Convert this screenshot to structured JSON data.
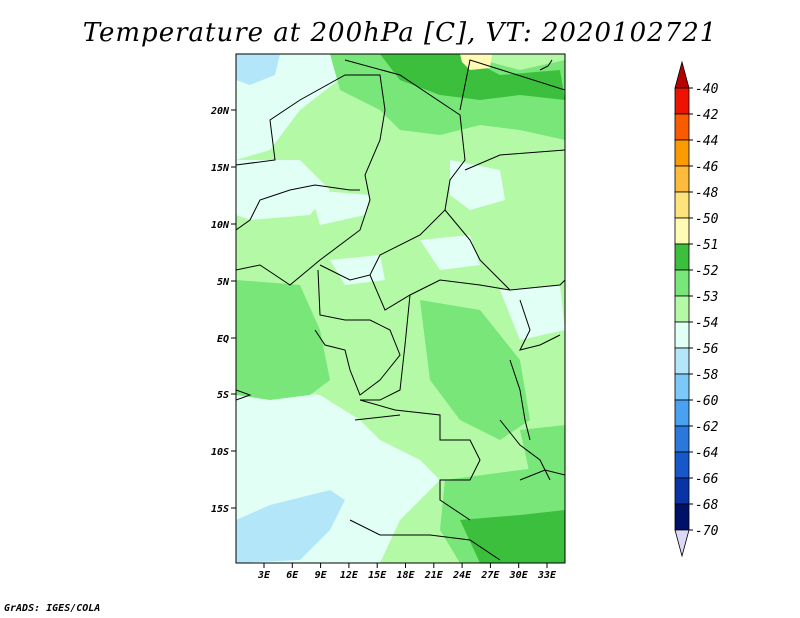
{
  "title": "Temperature at 200hPa [C], VT: 2020102721",
  "credit": "GrADS: IGES/COLA",
  "map": {
    "lat_ticks": [
      "20N",
      "15N",
      "10N",
      "5N",
      "EQ",
      "5S",
      "10S",
      "15S"
    ],
    "lon_ticks": [
      "3E",
      "6E",
      "9E",
      "12E",
      "15E",
      "18E",
      "21E",
      "24E",
      "27E",
      "30E",
      "33E"
    ]
  },
  "colorbar": {
    "labels": [
      "-40",
      "-42",
      "-44",
      "-46",
      "-48",
      "-50",
      "-51",
      "-52",
      "-53",
      "-54",
      "-56",
      "-58",
      "-60",
      "-62",
      "-64",
      "-66",
      "-68",
      "-70"
    ],
    "colors": [
      "#b50000",
      "#ee1200",
      "#fa5a00",
      "#fc9b00",
      "#fdbb3c",
      "#fee27c",
      "#fffbb4",
      "#3cbf3c",
      "#78e678",
      "#b4f9a6",
      "#e2fff6",
      "#b4e6fa",
      "#7cc8f9",
      "#4aa1f1",
      "#2a78dc",
      "#1658c9",
      "#0a34a6",
      "#021168",
      "#dcd8f5"
    ]
  }
}
